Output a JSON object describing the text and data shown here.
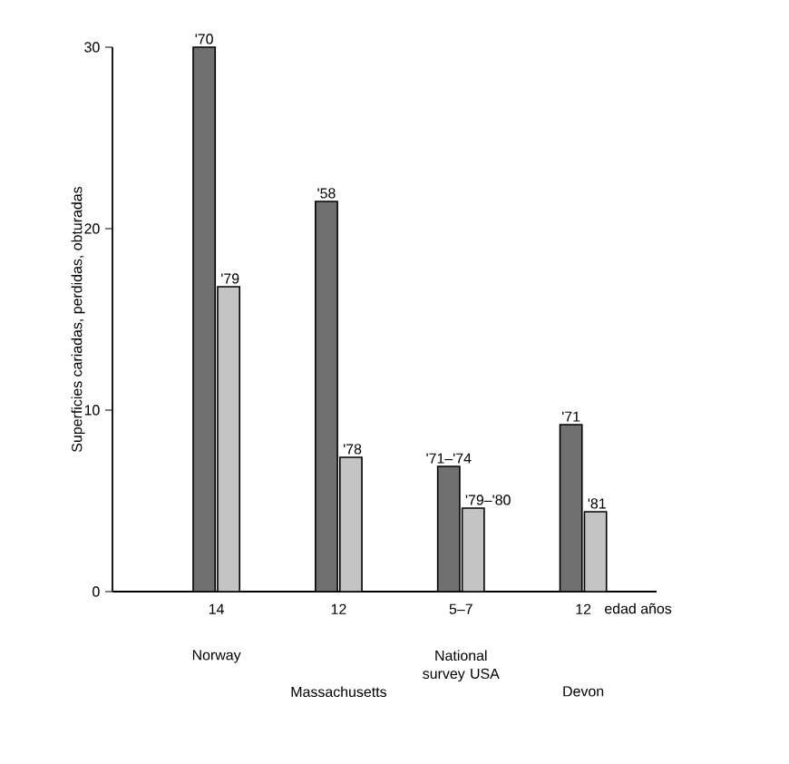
{
  "chart_data": {
    "type": "bar",
    "ylabel": "Superficies cariadas, perdidas, obturadas",
    "xlabel": "edad años",
    "categories": [
      "14",
      "12",
      "5–7",
      "12"
    ],
    "series": [
      {
        "color": "#707070",
        "values": [
          30,
          21.5,
          6.9,
          9.2
        ]
      },
      {
        "color": "#c4c4c4",
        "values": [
          16.8,
          7.4,
          4.6,
          4.4
        ]
      }
    ],
    "ylim": [
      0,
      30
    ],
    "yticks": [
      0,
      10,
      20,
      30
    ],
    "annotations": [
      "Norway",
      "Massachusetts",
      "National survey USA",
      "Devon",
      {
        "text": "'70",
        "x": "14",
        "y": 30
      },
      {
        "text": "'79",
        "x": "14",
        "y": 16.8
      },
      {
        "text": "'58",
        "x": "12",
        "y": 21.5
      },
      {
        "text": "'78",
        "x": "12",
        "y": 7.4
      },
      {
        "text": "'71–'74",
        "x": "5–7",
        "y": 6.9
      },
      {
        "text": "'79–'80",
        "x": "5–7",
        "y": 4.6
      },
      "'71",
      "'81"
    ]
  }
}
